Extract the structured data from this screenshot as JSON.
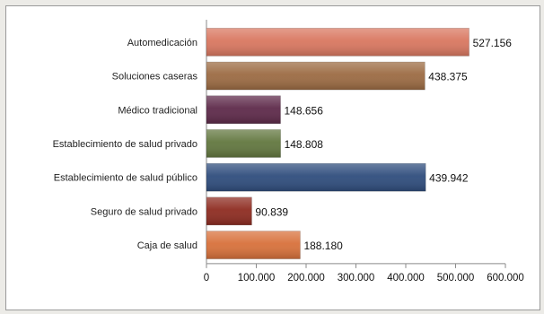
{
  "chart_data": {
    "type": "bar",
    "orientation": "horizontal",
    "categories": [
      "Automedicación",
      "Soluciones caseras",
      "Médico tradicional",
      "Establecimiento de salud privado",
      "Establecimiento de salud público",
      "Seguro de salud privado",
      "Caja de salud"
    ],
    "values": [
      527156,
      438375,
      148656,
      148808,
      439942,
      90839,
      188180
    ],
    "value_labels": [
      "527.156",
      "438.375",
      "148.656",
      "148.808",
      "439.942",
      "90.839",
      "188.180"
    ],
    "bar_colors": [
      "#d97760",
      "#9c6b43",
      "#5e2a4a",
      "#62773f",
      "#2f4d7d",
      "#8e2c21",
      "#d8713b"
    ],
    "xlim": [
      0,
      600000
    ],
    "xticks": [
      0,
      100000,
      200000,
      300000,
      400000,
      500000,
      600000
    ],
    "xtick_labels": [
      "0",
      "100.000",
      "200.000",
      "300.000",
      "400.000",
      "500.000",
      "600.000"
    ],
    "grid": false,
    "legend": "none",
    "title": "",
    "xlabel": "",
    "ylabel": ""
  }
}
